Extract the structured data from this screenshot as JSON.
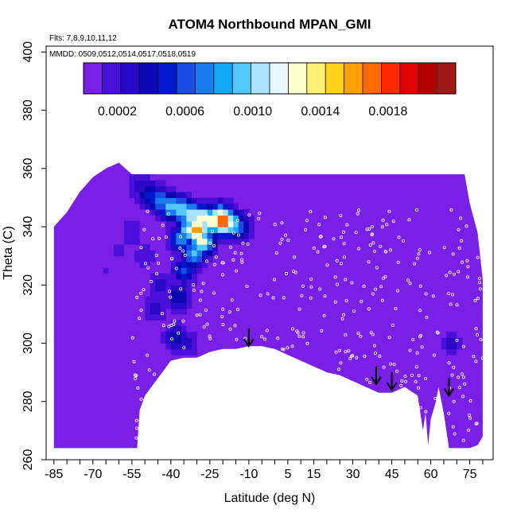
{
  "chart_data": {
    "type": "heatmap",
    "title": "ATOM4 Northbound MPAN_GMI",
    "notes": {
      "flights": "Flts: 7,8,9,10,11,12",
      "dates": "MMDD: 0509,0512,0514,0517,0518,0519"
    },
    "xlabel": "Latitude (deg N)",
    "ylabel": "Theta (C)",
    "xlim": [
      -88,
      84
    ],
    "ylim": [
      260,
      402
    ],
    "x_ticks": [
      -85,
      -70,
      -55,
      -40,
      -25,
      -10,
      5,
      15,
      30,
      45,
      60,
      75
    ],
    "y_ticks": [
      260,
      280,
      300,
      320,
      340,
      360,
      380,
      400
    ],
    "colorbar": {
      "range": [
        0.0,
        0.0022
      ],
      "ticks": [
        0.0002,
        0.0006,
        0.001,
        0.0014,
        0.0018
      ],
      "tick_labels": [
        "0.0002",
        "0.0006",
        "0.0010",
        "0.0014",
        "0.0018"
      ],
      "colors": [
        "#7a1fe6",
        "#4a0fd8",
        "#2a08c8",
        "#0a08b0",
        "#0018d0",
        "#1a4ce6",
        "#1a7cf0",
        "#12a8f8",
        "#50c8ff",
        "#a8e4ff",
        "#e8f6ff",
        "#ffffd0",
        "#fff070",
        "#ffd21a",
        "#ffa000",
        "#ff6a00",
        "#ff2a00",
        "#e00000",
        "#b40000",
        "#a01818"
      ]
    },
    "background_value": 3e-05,
    "boundary": {
      "lat": [
        -85,
        -80,
        -75,
        -70,
        -65,
        -60,
        -55,
        -53,
        -52,
        -50,
        -45,
        -40,
        -35,
        -30,
        -25,
        -20,
        -15,
        -10,
        -5,
        0,
        5,
        10,
        15,
        20,
        25,
        30,
        35,
        40,
        45,
        50,
        55,
        57,
        58,
        59,
        60,
        62,
        63,
        65,
        67,
        70,
        73,
        75,
        78,
        80
      ],
      "top": [
        340,
        345,
        352,
        357,
        360,
        362,
        358,
        358,
        358,
        358,
        358,
        358,
        358,
        358,
        358,
        358,
        358,
        358,
        358,
        358,
        358,
        358,
        358,
        358,
        358,
        358,
        358,
        358,
        358,
        358,
        358,
        358,
        358,
        358,
        358,
        358,
        358,
        358,
        358,
        358,
        358,
        348,
        338,
        322
      ],
      "bottom": [
        264,
        264,
        264,
        264,
        264,
        264,
        264,
        264,
        277,
        282,
        288,
        294,
        295,
        295,
        297,
        298,
        298,
        299,
        299,
        298,
        296,
        294,
        292,
        290,
        289,
        287,
        285,
        283,
        283,
        285,
        282,
        270,
        276,
        265,
        274,
        280,
        285,
        276,
        264,
        264,
        264,
        264,
        265,
        268
      ]
    },
    "plume": [
      {
        "lat": -52,
        "theta": 354,
        "value": 0.00035
      },
      {
        "lat": -48,
        "theta": 351,
        "value": 0.00055
      },
      {
        "lat": -44,
        "theta": 349,
        "value": 0.0008
      },
      {
        "lat": -40,
        "theta": 347,
        "value": 0.00098
      },
      {
        "lat": -36,
        "theta": 346,
        "value": 0.0011
      },
      {
        "lat": -32,
        "theta": 344,
        "value": 0.0012
      },
      {
        "lat": -28,
        "theta": 343,
        "value": 0.00135
      },
      {
        "lat": -24,
        "theta": 342,
        "value": 0.00145
      },
      {
        "lat": -21,
        "theta": 343,
        "value": 0.0016
      },
      {
        "lat": -20,
        "theta": 342,
        "value": 0.0019
      },
      {
        "lat": -33,
        "theta": 339,
        "value": 0.0011
      },
      {
        "lat": -30,
        "theta": 339,
        "value": 0.0017
      },
      {
        "lat": -28,
        "theta": 335,
        "value": 0.0013
      },
      {
        "lat": -31,
        "theta": 331,
        "value": 0.0009
      },
      {
        "lat": -36,
        "theta": 336,
        "value": 0.0008
      },
      {
        "lat": -35,
        "theta": 325,
        "value": 0.00055
      },
      {
        "lat": -37,
        "theta": 316,
        "value": 0.00045
      },
      {
        "lat": -38,
        "theta": 302,
        "value": 0.00042
      },
      {
        "lat": -34,
        "theta": 300,
        "value": 0.0003
      },
      {
        "lat": -44,
        "theta": 320,
        "value": 0.00028
      },
      {
        "lat": -46,
        "theta": 312,
        "value": 0.00026
      },
      {
        "lat": -50,
        "theta": 330,
        "value": 0.00022
      },
      {
        "lat": -55,
        "theta": 338,
        "value": 0.0002
      },
      {
        "lat": -60,
        "theta": 332,
        "value": 0.00016
      },
      {
        "lat": -65,
        "theta": 325,
        "value": 0.00012
      },
      {
        "lat": -70,
        "theta": 330,
        "value": 0.0001
      },
      {
        "lat": -17,
        "theta": 341,
        "value": 0.0012
      },
      {
        "lat": -14,
        "theta": 340,
        "value": 0.0007
      },
      {
        "lat": 68,
        "theta": 300,
        "value": 0.00025
      }
    ],
    "arrows": [
      {
        "lat": -10,
        "theta": 299
      },
      {
        "lat": 39,
        "theta": 286
      },
      {
        "lat": 45,
        "theta": 284
      },
      {
        "lat": 67,
        "theta": 282
      }
    ]
  }
}
